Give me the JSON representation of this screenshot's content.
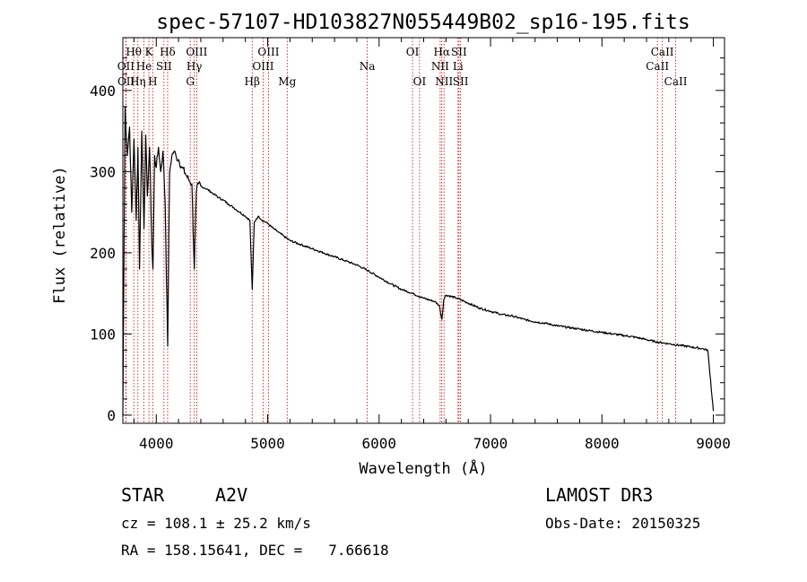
{
  "chart_data": {
    "type": "line",
    "title": "spec-57107-HD103827N055449B02_sp16-195.fits",
    "xlabel": "Wavelength (Å)",
    "ylabel": "Flux (relative)",
    "xlim": [
      3700,
      9100
    ],
    "ylim": [
      -10,
      465
    ],
    "x_ticks": [
      4000,
      5000,
      6000,
      7000,
      8000,
      9000
    ],
    "y_ticks": [
      0,
      100,
      200,
      300,
      400
    ],
    "series": [
      {
        "name": "flux",
        "x": [
          3700,
          3720,
          3740,
          3760,
          3780,
          3800,
          3820,
          3835,
          3850,
          3870,
          3890,
          3905,
          3920,
          3940,
          3960,
          3970,
          3985,
          4000,
          4020,
          4040,
          4060,
          4080,
          4102,
          4120,
          4140,
          4160,
          4180,
          4200,
          4230,
          4260,
          4290,
          4320,
          4341,
          4360,
          4380,
          4400,
          4430,
          4460,
          4490,
          4520,
          4560,
          4600,
          4650,
          4700,
          4750,
          4800,
          4840,
          4861,
          4880,
          4900,
          4920,
          4950,
          4980,
          5000,
          5050,
          5100,
          5150,
          5200,
          5300,
          5400,
          5500,
          5600,
          5700,
          5800,
          5900,
          6000,
          6100,
          6200,
          6300,
          6400,
          6500,
          6540,
          6563,
          6580,
          6600,
          6700,
          6800,
          6900,
          7000,
          7100,
          7200,
          7300,
          7400,
          7500,
          7600,
          7700,
          7800,
          7900,
          8000,
          8100,
          8200,
          8300,
          8400,
          8500,
          8600,
          8700,
          8800,
          8900,
          8950,
          9000
        ],
        "y": [
          0,
          380,
          320,
          355,
          250,
          340,
          240,
          330,
          180,
          350,
          230,
          345,
          270,
          330,
          210,
          180,
          320,
          305,
          330,
          300,
          325,
          260,
          85,
          300,
          320,
          325,
          318,
          315,
          305,
          298,
          290,
          285,
          180,
          275,
          285,
          282,
          280,
          278,
          275,
          272,
          268,
          265,
          260,
          255,
          250,
          245,
          240,
          155,
          238,
          242,
          245,
          240,
          238,
          236,
          230,
          225,
          220,
          215,
          210,
          205,
          200,
          195,
          190,
          185,
          178,
          170,
          162,
          155,
          150,
          144,
          140,
          135,
          118,
          142,
          148,
          144,
          138,
          132,
          128,
          124,
          122,
          118,
          115,
          113,
          110,
          108,
          106,
          104,
          102,
          100,
          98,
          96,
          93,
          90,
          88,
          86,
          84,
          82,
          80,
          5
        ]
      }
    ],
    "lines": [
      {
        "label": "Hθ",
        "x": 3798,
        "row": 1
      },
      {
        "label": "OII",
        "x": 3727,
        "row": 2
      },
      {
        "label": "OII",
        "x": 3729,
        "row": 3
      },
      {
        "label": "He",
        "x": 3889,
        "row": 2
      },
      {
        "label": "Hη",
        "x": 3835,
        "row": 3
      },
      {
        "label": "K",
        "x": 3934,
        "row": 1
      },
      {
        "label": "SII",
        "x": 4069,
        "row": 2
      },
      {
        "label": "H",
        "x": 3968,
        "row": 3
      },
      {
        "label": "Hδ",
        "x": 4102,
        "row": 1
      },
      {
        "label": "OIII",
        "x": 4363,
        "row": 1
      },
      {
        "label": "Hγ",
        "x": 4341,
        "row": 2
      },
      {
        "label": "G",
        "x": 4305,
        "row": 3
      },
      {
        "label": "Hβ",
        "x": 4861,
        "row": 3
      },
      {
        "label": "OIII",
        "x": 5007,
        "row": 1
      },
      {
        "label": "OIII",
        "x": 4959,
        "row": 2
      },
      {
        "label": "Mg",
        "x": 5175,
        "row": 3
      },
      {
        "label": "Na",
        "x": 5894,
        "row": 2
      },
      {
        "label": "OI",
        "x": 6300,
        "row": 1
      },
      {
        "label": "OI",
        "x": 6363,
        "row": 3
      },
      {
        "label": "Hα",
        "x": 6563,
        "row": 1
      },
      {
        "label": "SII",
        "x": 6717,
        "row": 1
      },
      {
        "label": "NII",
        "x": 6548,
        "row": 2
      },
      {
        "label": "Li",
        "x": 6708,
        "row": 2
      },
      {
        "label": "NII",
        "x": 6583,
        "row": 3
      },
      {
        "label": "SII",
        "x": 6731,
        "row": 3
      },
      {
        "label": "CaII",
        "x": 8542,
        "row": 1
      },
      {
        "label": "CaII",
        "x": 8498,
        "row": 2
      },
      {
        "label": "CaII",
        "x": 8662,
        "row": 3
      }
    ]
  },
  "info": {
    "object_type": "STAR",
    "subclass": "A2V",
    "survey": "LAMOST DR3",
    "cz_text": "cz = 108.1 ± 25.2 km/s",
    "obs_date_text": "Obs-Date: 20150325",
    "coords_text": "RA = 158.15641, DEC =   7.66618"
  }
}
